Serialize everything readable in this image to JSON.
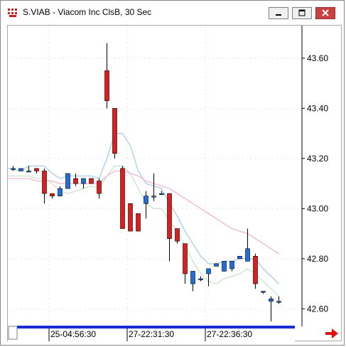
{
  "window": {
    "title": "S.VIAB - Viacom Inc ClsB, 30 Sec",
    "icon": "chart-app-icon",
    "buttons": [
      "minimize-icon",
      "maximize-icon",
      "close-icon"
    ]
  },
  "colors": {
    "up_candle": "#1f6fd8",
    "down_candle": "#dc1e1e",
    "ma_fast": "#a8cdea",
    "ma_medium": "#c8e6c8",
    "ma_slow": "#f0b4d4",
    "grid": "#d0d0d0",
    "scrollbar_track": "#1a2ad8",
    "nav_arrow": "#e01010"
  },
  "nav": {
    "arrow_icon": "right-arrow-icon"
  },
  "chart_data": {
    "type": "candlestick",
    "title": "S.VIAB - Viacom Inc ClsB, 30 Sec",
    "y_axis": {
      "side": "right",
      "ylim": [
        42.53,
        43.73
      ],
      "ticks": [
        43.6,
        43.4,
        43.2,
        43.0,
        42.8,
        42.6
      ],
      "tick_labels": [
        "43.60",
        "43.40",
        "43.20",
        "43.00",
        "42.80",
        "42.60"
      ]
    },
    "x_axis": {
      "tick_labels": [
        "25-04:56:30",
        "27-22:31:30",
        "27-22:36:30"
      ],
      "tick_bar_index": [
        5,
        15,
        25
      ]
    },
    "grid": true,
    "candles": [
      {
        "o": 43.16,
        "h": 43.17,
        "l": 43.15,
        "c": 43.16
      },
      {
        "o": 43.15,
        "h": 43.16,
        "l": 43.15,
        "c": 43.16
      },
      {
        "o": 43.15,
        "h": 43.17,
        "l": 43.15,
        "c": 43.15
      },
      {
        "o": 43.16,
        "h": 43.16,
        "l": 43.14,
        "c": 43.15
      },
      {
        "o": 43.15,
        "h": 43.16,
        "l": 43.02,
        "c": 43.06
      },
      {
        "o": 43.06,
        "h": 43.06,
        "l": 43.04,
        "c": 43.05
      },
      {
        "o": 43.05,
        "h": 43.09,
        "l": 43.05,
        "c": 43.08
      },
      {
        "o": 43.08,
        "h": 43.14,
        "l": 43.08,
        "c": 43.14
      },
      {
        "o": 43.12,
        "h": 43.14,
        "l": 43.09,
        "c": 43.1
      },
      {
        "o": 43.1,
        "h": 43.12,
        "l": 43.08,
        "c": 43.12
      },
      {
        "o": 43.12,
        "h": 43.12,
        "l": 43.1,
        "c": 43.1
      },
      {
        "o": 43.11,
        "h": 43.12,
        "l": 43.04,
        "c": 43.06
      },
      {
        "o": 43.55,
        "h": 43.66,
        "l": 43.4,
        "c": 43.43
      },
      {
        "o": 43.4,
        "h": 43.4,
        "l": 43.2,
        "c": 43.22
      },
      {
        "o": 43.16,
        "h": 43.17,
        "l": 42.92,
        "c": 42.92
      },
      {
        "o": 43.02,
        "h": 43.02,
        "l": 42.91,
        "c": 42.91
      },
      {
        "o": 42.98,
        "h": 42.98,
        "l": 42.91,
        "c": 42.91
      },
      {
        "o": 43.02,
        "h": 43.07,
        "l": 42.96,
        "c": 43.05
      },
      {
        "o": 43.05,
        "h": 43.14,
        "l": 43.03,
        "c": 43.05
      },
      {
        "o": 43.06,
        "h": 43.07,
        "l": 43.06,
        "c": 43.06
      },
      {
        "o": 43.06,
        "h": 43.06,
        "l": 42.79,
        "c": 42.88
      },
      {
        "o": 42.92,
        "h": 42.92,
        "l": 42.86,
        "c": 42.87
      },
      {
        "o": 42.86,
        "h": 42.86,
        "l": 42.7,
        "c": 42.74
      },
      {
        "o": 42.7,
        "h": 42.75,
        "l": 42.67,
        "c": 42.75
      },
      {
        "o": 42.72,
        "h": 42.73,
        "l": 42.71,
        "c": 42.72
      },
      {
        "o": 42.74,
        "h": 42.76,
        "l": 42.69,
        "c": 42.76
      },
      {
        "o": 42.77,
        "h": 42.78,
        "l": 42.77,
        "c": 42.78
      },
      {
        "o": 42.75,
        "h": 42.79,
        "l": 42.75,
        "c": 42.79
      },
      {
        "o": 42.76,
        "h": 42.79,
        "l": 42.75,
        "c": 42.79
      },
      {
        "o": 42.8,
        "h": 42.81,
        "l": 42.8,
        "c": 42.81
      },
      {
        "o": 42.79,
        "h": 42.92,
        "l": 42.79,
        "c": 42.84
      },
      {
        "o": 42.81,
        "h": 42.82,
        "l": 42.68,
        "c": 42.7
      },
      {
        "o": 42.67,
        "h": 42.67,
        "l": 42.66,
        "c": 42.67
      },
      {
        "o": 42.63,
        "h": 42.65,
        "l": 42.55,
        "c": 42.64
      },
      {
        "o": 42.63,
        "h": 42.65,
        "l": 42.62,
        "c": 42.63
      }
    ],
    "series": [
      {
        "style": "line",
        "values": [
          43.16,
          43.15,
          43.17,
          43.17,
          43.17,
          43.14,
          43.12,
          43.13,
          43.13,
          43.13,
          43.13,
          43.12,
          43.2,
          43.3,
          43.3,
          43.25,
          43.15,
          43.1,
          43.09,
          43.08,
          43.02,
          42.97,
          42.91,
          42.86,
          42.81,
          42.78,
          42.78,
          42.79,
          42.79,
          42.8,
          42.8,
          42.8,
          42.76,
          42.73,
          42.7
        ]
      },
      {
        "style": "line",
        "values": [
          43.13,
          43.13,
          43.13,
          43.12,
          43.12,
          43.1,
          43.07,
          43.06,
          43.07,
          43.08,
          43.09,
          43.08,
          43.13,
          43.17,
          43.17,
          43.14,
          43.08,
          43.02,
          43.0,
          43.0,
          42.95,
          42.91,
          42.85,
          42.79,
          42.74,
          42.71,
          42.7,
          42.72,
          42.73,
          42.74,
          42.76,
          42.74,
          42.71,
          42.68,
          42.65
        ]
      },
      {
        "style": "line",
        "values": [
          43.12,
          43.12,
          43.12,
          43.11,
          43.11,
          43.11,
          43.1,
          43.1,
          43.1,
          43.1,
          43.1,
          43.1,
          43.13,
          43.15,
          43.15,
          43.14,
          43.13,
          43.11,
          43.1,
          43.09,
          43.08,
          43.06,
          43.04,
          43.02,
          43.0,
          42.98,
          42.96,
          42.94,
          42.92,
          42.91,
          42.9,
          42.88,
          42.86,
          42.84,
          42.82
        ]
      }
    ]
  }
}
